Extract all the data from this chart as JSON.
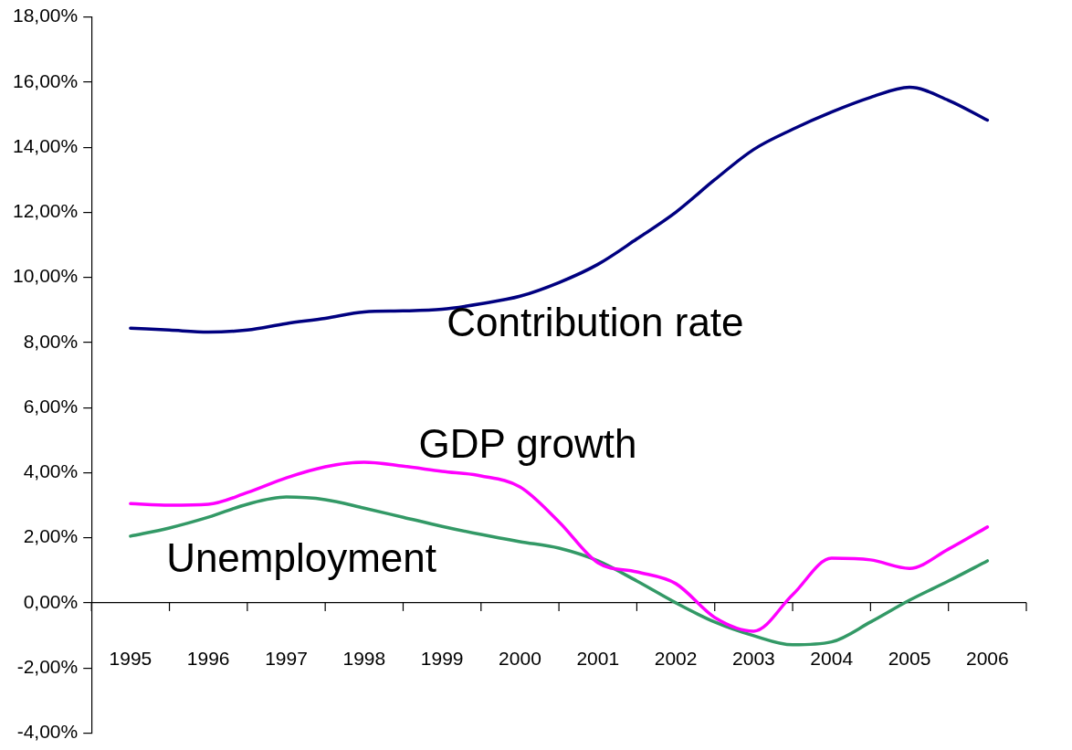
{
  "chart_data": {
    "type": "line",
    "x": [
      1995,
      1995.5,
      1996,
      1996.5,
      1997,
      1997.5,
      1998,
      1998.5,
      1999,
      1999.5,
      2000,
      2000.5,
      2001,
      2001.5,
      2002,
      2002.5,
      2003,
      2003.5,
      2004,
      2004.5,
      2005,
      2005.5,
      2006
    ],
    "series": [
      {
        "name": "Contribution rate",
        "color": "#000080",
        "values": [
          8.44,
          8.38,
          8.32,
          8.38,
          8.58,
          8.74,
          8.94,
          8.97,
          9.02,
          9.19,
          9.42,
          9.84,
          10.4,
          11.18,
          12.0,
          13.0,
          13.93,
          14.55,
          15.08,
          15.53,
          15.84,
          15.44,
          14.83
        ]
      },
      {
        "name": "GDP growth",
        "color": "#ff00ff",
        "values": [
          3.05,
          3.0,
          3.03,
          3.39,
          3.84,
          4.18,
          4.32,
          4.2,
          4.04,
          3.9,
          3.56,
          2.49,
          1.23,
          0.95,
          0.59,
          -0.45,
          -0.87,
          0.25,
          1.37,
          1.32,
          1.06,
          1.65,
          2.33
        ]
      },
      {
        "name": "Unemployment",
        "color": "#339966",
        "values": [
          2.05,
          2.3,
          2.63,
          3.03,
          3.25,
          3.17,
          2.91,
          2.63,
          2.35,
          2.1,
          1.88,
          1.68,
          1.29,
          0.67,
          0.0,
          -0.59,
          -1.01,
          -1.29,
          -1.2,
          -0.59,
          0.08,
          0.67,
          1.29
        ]
      }
    ],
    "xlim": [
      1994.5,
      2006.5
    ],
    "xticks": [
      {
        "value": 1994.5,
        "label": null
      },
      1995,
      {
        "value": 1995.5,
        "label": null
      },
      1996,
      {
        "value": 1996.5,
        "label": null
      },
      1997,
      {
        "value": 1997.5,
        "label": null
      },
      1998,
      {
        "value": 1998.5,
        "label": null
      },
      1999,
      {
        "value": 1999.5,
        "label": null
      },
      2000,
      {
        "value": 2000.5,
        "label": null
      },
      2001,
      {
        "value": 2001.5,
        "label": null
      },
      2002,
      {
        "value": 2002.5,
        "label": null
      },
      2003,
      {
        "value": 2003.5,
        "label": null
      },
      2004,
      {
        "value": 2004.5,
        "label": null
      },
      2005,
      {
        "value": 2005.5,
        "label": null
      },
      2006,
      {
        "value": 2006.5,
        "label": null
      }
    ],
    "ylim": [
      -4,
      18
    ],
    "yticks": [
      {
        "value": -4,
        "label": "-4,00%"
      },
      {
        "value": -2,
        "label": "-2,00%"
      },
      {
        "value": 0,
        "label": "0,00%"
      },
      {
        "value": 2,
        "label": "2,00%"
      },
      {
        "value": 4,
        "label": "4,00%"
      },
      {
        "value": 6,
        "label": "6,00%"
      },
      {
        "value": 8,
        "label": "8,00%"
      },
      {
        "value": 10,
        "label": "10,00%"
      },
      {
        "value": 12,
        "label": "12,00%"
      },
      {
        "value": 14,
        "label": "14,00%"
      },
      {
        "value": 16,
        "label": "16,00%"
      },
      {
        "value": 18,
        "label": "18,00%"
      }
    ],
    "grid": false,
    "legend": false,
    "marker": "none",
    "line_style": "solid"
  }
}
